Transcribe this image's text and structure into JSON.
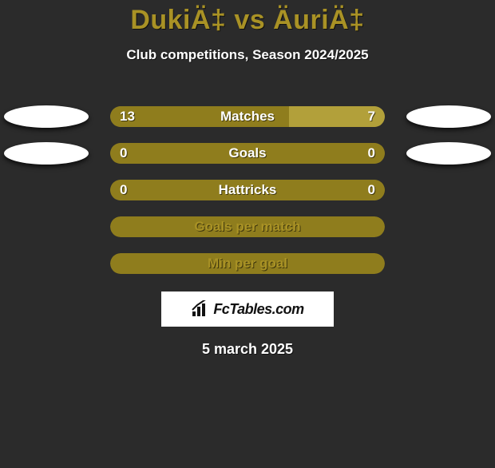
{
  "header": {
    "title": "DukiÄ‡ vs ÄuriÄ‡",
    "title_color": "#a99225",
    "subtitle": "Club competitions, Season 2024/2025"
  },
  "colors": {
    "background": "#2b2b2b",
    "text": "#ffffff",
    "accent": "#a99225",
    "pill_light": "#b2a03a",
    "pill_dark": "#8f7d1d",
    "badge": "#ffffff"
  },
  "stats": [
    {
      "label": "Matches",
      "left_value": "13",
      "right_value": "7",
      "left_pct": 65,
      "right_pct": 35,
      "left_badge": true,
      "right_badge": true,
      "left_fill_color": "#8f7d1d",
      "right_fill_color": "#b2a03a",
      "bg_color": "#b2a03a",
      "label_color": "#ffffff",
      "value_color": "#ffffff"
    },
    {
      "label": "Goals",
      "left_value": "0",
      "right_value": "0",
      "left_pct": 50,
      "right_pct": 50,
      "left_badge": true,
      "right_badge": true,
      "left_fill_color": "#8f7d1d",
      "right_fill_color": "#8f7d1d",
      "bg_color": "#8f7d1d",
      "label_color": "#ffffff",
      "value_color": "#ffffff"
    },
    {
      "label": "Hattricks",
      "left_value": "0",
      "right_value": "0",
      "left_pct": 50,
      "right_pct": 50,
      "left_badge": false,
      "right_badge": false,
      "left_fill_color": "#8f7d1d",
      "right_fill_color": "#8f7d1d",
      "bg_color": "#8f7d1d",
      "label_color": "#ffffff",
      "value_color": "#ffffff"
    },
    {
      "label": "Goals per match",
      "left_value": "",
      "right_value": "",
      "left_pct": 0,
      "right_pct": 0,
      "left_badge": false,
      "right_badge": false,
      "left_fill_color": "#8f7d1d",
      "right_fill_color": "#8f7d1d",
      "bg_color": "#8f7d1d",
      "label_color": "#a99225",
      "value_color": "#a99225"
    },
    {
      "label": "Min per goal",
      "left_value": "",
      "right_value": "",
      "left_pct": 0,
      "right_pct": 0,
      "left_badge": false,
      "right_badge": false,
      "left_fill_color": "#8f7d1d",
      "right_fill_color": "#8f7d1d",
      "bg_color": "#8f7d1d",
      "label_color": "#a99225",
      "value_color": "#a99225"
    }
  ],
  "footer": {
    "logo_text": "FcTables.com",
    "date": "5 march 2025"
  }
}
